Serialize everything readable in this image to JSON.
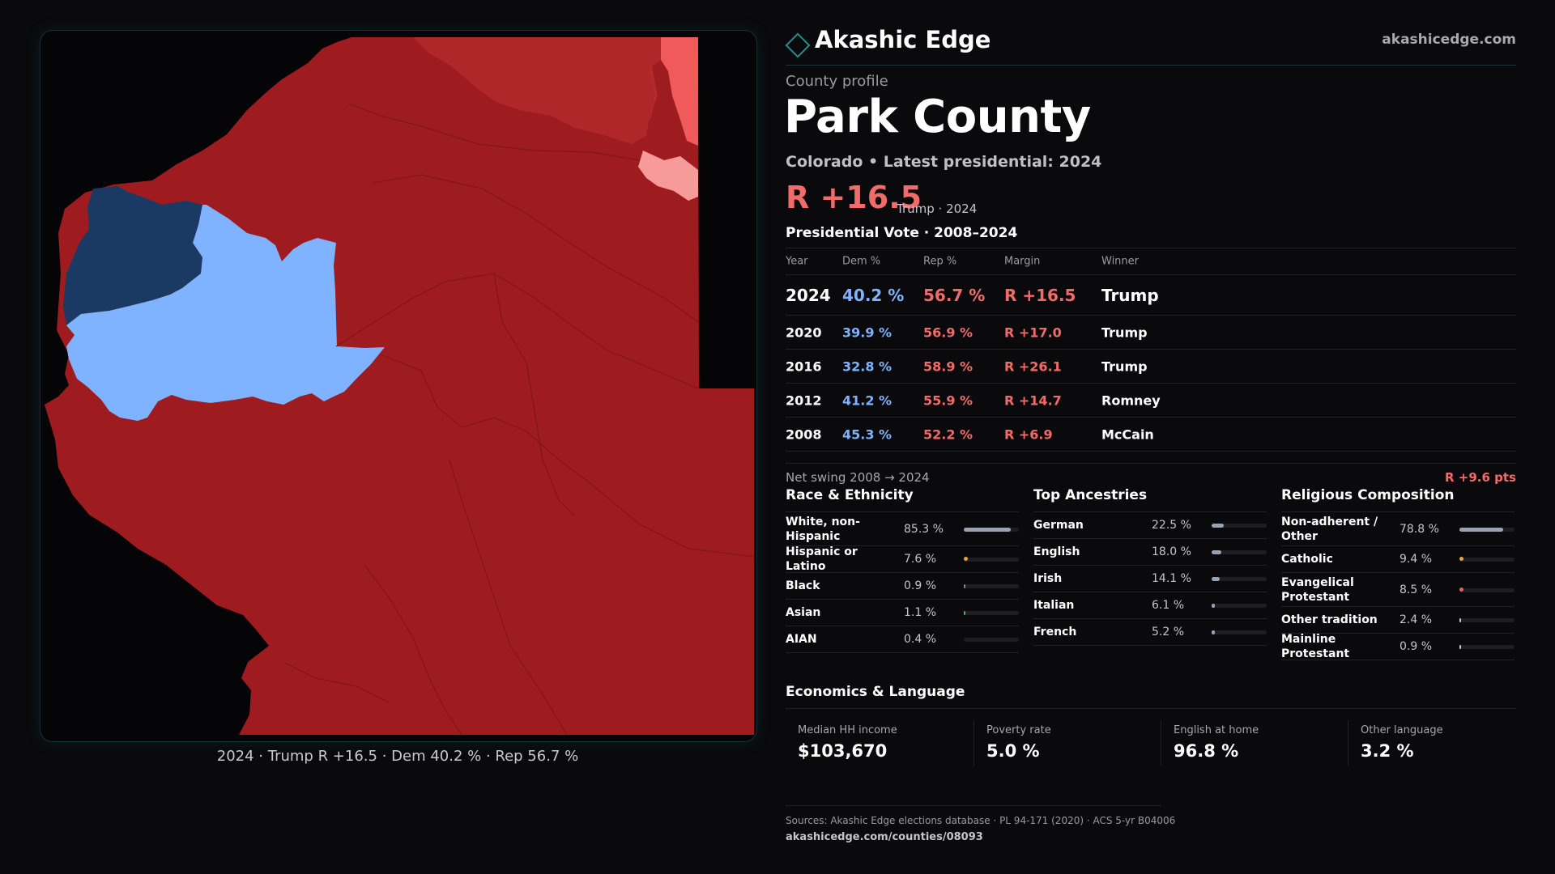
{
  "colors": {
    "background": "#0a0a0c",
    "accent_teal": "#2a8a8c",
    "rep_dark": "#9e1b1f",
    "rep_mid": "#b0272a",
    "rep_light": "#f05a5a",
    "rep_pale": "#f79a9a",
    "dem_dark": "#1a3a63",
    "dem_light": "#7fb2ff",
    "text_rep": "#f26b6b",
    "text_dem": "#7fb2ff"
  },
  "header": {
    "brand_name": "Akashic Edge",
    "brand_icon": "diamond-icon",
    "brand_url": "akashicedge.com"
  },
  "profile": {
    "label": "County profile",
    "county": "Park County",
    "subtitle": "Colorado • Latest presidential: 2024",
    "margin": "R +16.5",
    "margin_note": "Trump · 2024"
  },
  "votes": {
    "title": "Presidential Vote · 2008–2024",
    "headers": {
      "year": "Year",
      "dem": "Dem %",
      "rep": "Rep %",
      "margin": "Margin",
      "winner": "Winner"
    },
    "rows": [
      {
        "year": "2024",
        "dem": "40.2 %",
        "rep": "56.7 %",
        "margin": "R +16.5",
        "winner": "Trump"
      },
      {
        "year": "2020",
        "dem": "39.9 %",
        "rep": "56.9 %",
        "margin": "R +17.0",
        "winner": "Trump"
      },
      {
        "year": "2016",
        "dem": "32.8 %",
        "rep": "58.9 %",
        "margin": "R +26.1",
        "winner": "Trump"
      },
      {
        "year": "2012",
        "dem": "41.2 %",
        "rep": "55.9 %",
        "margin": "R +14.7",
        "winner": "Romney"
      },
      {
        "year": "2008",
        "dem": "45.3 %",
        "rep": "52.2 %",
        "margin": "R +6.9",
        "winner": "McCain"
      }
    ]
  },
  "swing": {
    "label": "Net swing 2008 → 2024",
    "value": "R +9.6 pts"
  },
  "race": {
    "title": "Race & Ethnicity",
    "items": [
      {
        "label": "White, non-Hispanic",
        "value": "85.3 %",
        "pct": 85.3
      },
      {
        "label": "Hispanic or Latino",
        "value": "7.6 %",
        "pct": 7.6
      },
      {
        "label": "Black",
        "value": "0.9 %",
        "pct": 0.9
      },
      {
        "label": "Asian",
        "value": "1.1 %",
        "pct": 1.1
      },
      {
        "label": "AIAN",
        "value": "0.4 %",
        "pct": 0.4
      }
    ]
  },
  "ancestry": {
    "title": "Top Ancestries",
    "items": [
      {
        "label": "German",
        "value": "22.5 %",
        "pct": 22.5
      },
      {
        "label": "English",
        "value": "18.0 %",
        "pct": 18.0
      },
      {
        "label": "Irish",
        "value": "14.1 %",
        "pct": 14.1
      },
      {
        "label": "Italian",
        "value": "6.1 %",
        "pct": 6.1
      },
      {
        "label": "French",
        "value": "5.2 %",
        "pct": 5.2
      }
    ]
  },
  "religion": {
    "title": "Religious Composition",
    "items": [
      {
        "label": "Non-adherent / Other",
        "value": "78.8 %",
        "pct": 78.8
      },
      {
        "label": "Catholic",
        "value": "9.4 %",
        "pct": 9.4
      },
      {
        "label": "Evangelical Protestant",
        "value": "8.5 %",
        "pct": 8.5
      },
      {
        "label": "Other tradition",
        "value": "2.4 %",
        "pct": 2.4
      },
      {
        "label": "Mainline Protestant",
        "value": "0.9 %",
        "pct": 0.9
      }
    ]
  },
  "economics": {
    "title": "Economics & Language",
    "items": [
      {
        "label": "Median HH income",
        "value": "$103,670"
      },
      {
        "label": "Poverty rate",
        "value": "5.0 %"
      },
      {
        "label": "English at home",
        "value": "96.8 %"
      },
      {
        "label": "Other language",
        "value": "3.2 %"
      }
    ]
  },
  "map": {
    "caption": "2024 · Trump R +16.5 · Dem 40.2 % · Rep 56.7 %"
  },
  "footer": {
    "sources": "Sources: Akashic Edge elections database · PL 94-171 (2020) · ACS 5-yr B04006",
    "url": "akashicedge.com/counties/08093"
  }
}
